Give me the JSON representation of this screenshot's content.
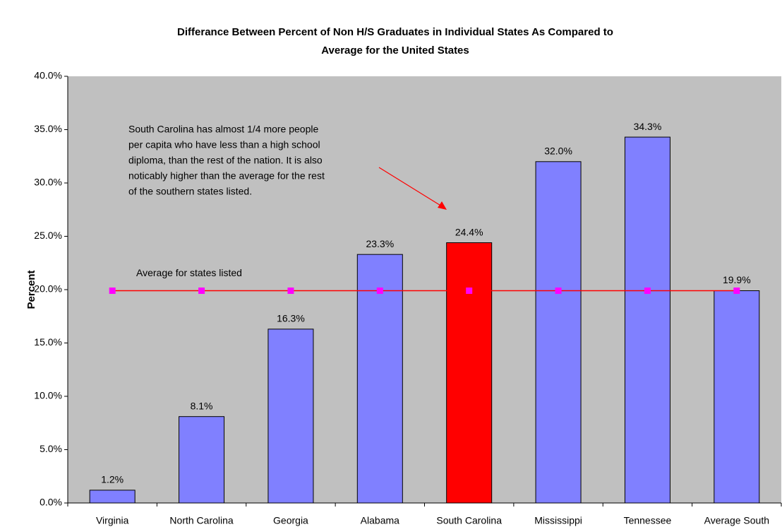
{
  "chart_data": {
    "type": "bar",
    "title": [
      "Differance Between Percent of Non H/S Graduates in Individual States As Compared to",
      "Average for the United States"
    ],
    "y_label": "Percent",
    "categories": [
      "Virginia",
      "North Carolina",
      "Georgia",
      "Alabama",
      "South Carolina",
      "Mississippi",
      "Tennessee",
      "Average South"
    ],
    "values": [
      1.2,
      8.1,
      16.3,
      23.3,
      24.4,
      32.0,
      34.3,
      19.9
    ],
    "value_labels": [
      "1.2%",
      "8.1%",
      "16.3%",
      "23.3%",
      "24.4%",
      "32.0%",
      "34.3%",
      "19.9%"
    ],
    "colors": [
      "#8080ff",
      "#8080ff",
      "#8080ff",
      "#8080ff",
      "#ff0000",
      "#8080ff",
      "#8080ff",
      "#8080ff"
    ],
    "line": {
      "label": "Average for states listed",
      "values": [
        19.9,
        19.9,
        19.9,
        19.9,
        19.9,
        19.9,
        19.9,
        19.9
      ],
      "color": "#ff0000",
      "marker_color": "#ff00ff"
    },
    "annotation": [
      "South Carolina has almost 1/4 more people",
      "per capita who have less than a high school",
      "diploma, than the rest of the nation.  It is also",
      "noticably higher than the average for the rest",
      "of the southern states listed."
    ],
    "ylim": [
      0,
      40
    ],
    "yticks": [
      {
        "value": 0,
        "label": "0.0%"
      },
      {
        "value": 5,
        "label": "5.0%"
      },
      {
        "value": 10,
        "label": "10.0%"
      },
      {
        "value": 15,
        "label": "15.0%"
      },
      {
        "value": 20,
        "label": "20.0%"
      },
      {
        "value": 25,
        "label": "25.0%"
      },
      {
        "value": 30,
        "label": "30.0%"
      },
      {
        "value": 35,
        "label": "35.0%"
      },
      {
        "value": 40,
        "label": "40.0%"
      }
    ],
    "background": "#c0c0c0"
  }
}
